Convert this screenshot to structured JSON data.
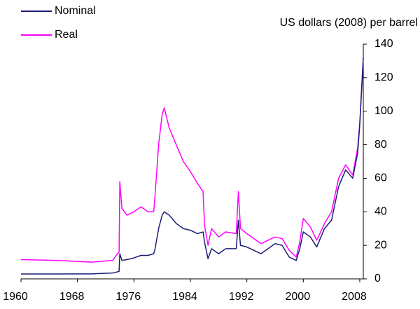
{
  "chart_data": {
    "type": "line",
    "y_axis_label": "US dollars (2008) per barrel",
    "x": [
      1960,
      1965,
      1970,
      1973,
      1973.5,
      1973.9,
      1974,
      1974.3,
      1975,
      1976,
      1977,
      1978,
      1978.8,
      1979,
      1979.5,
      1980,
      1980.3,
      1981,
      1982,
      1983,
      1984,
      1985,
      1985.8,
      1986,
      1986.5,
      1987,
      1988,
      1989,
      1990.5,
      1990.8,
      1991.1,
      1992,
      1994,
      1996,
      1997,
      1998,
      1999,
      1999.5,
      2000,
      2001,
      2001.9,
      2003,
      2004,
      2005,
      2006,
      2007,
      2007.7,
      2008,
      2008.5
    ],
    "series": [
      {
        "name": "Nominal",
        "color": "#1c1c78",
        "values": [
          2.9,
          2.9,
          3.0,
          3.5,
          4.0,
          4.5,
          15,
          11,
          11.5,
          12.5,
          14,
          14,
          15,
          18,
          30,
          38,
          40,
          38,
          33,
          30,
          29,
          27,
          28,
          22,
          12,
          18,
          15,
          18,
          18,
          35,
          20,
          19,
          15,
          21,
          20,
          13,
          11,
          18,
          28,
          25,
          19,
          30,
          35,
          55,
          65,
          60,
          75,
          92,
          132
        ]
      },
      {
        "name": "Real",
        "color": "#ff00ff",
        "values": [
          11.5,
          11,
          10,
          11,
          14,
          16,
          58,
          42,
          38,
          40,
          43,
          40,
          40,
          50,
          80,
          98,
          102,
          90,
          80,
          70,
          64,
          57,
          52,
          32,
          20,
          30,
          25,
          28,
          27,
          52,
          30,
          27,
          21,
          25,
          24,
          17,
          13,
          22,
          36,
          31,
          23,
          33,
          40,
          60,
          68,
          62,
          78,
          93,
          132
        ]
      }
    ],
    "xlim": [
      1960,
      2008.5
    ],
    "xticks": [
      1960,
      1968,
      1976,
      1984,
      1992,
      2000,
      2008
    ],
    "ylim": [
      0,
      140
    ],
    "yticks": [
      0,
      20,
      40,
      60,
      80,
      100,
      120,
      140
    ],
    "legend": "top-left"
  }
}
